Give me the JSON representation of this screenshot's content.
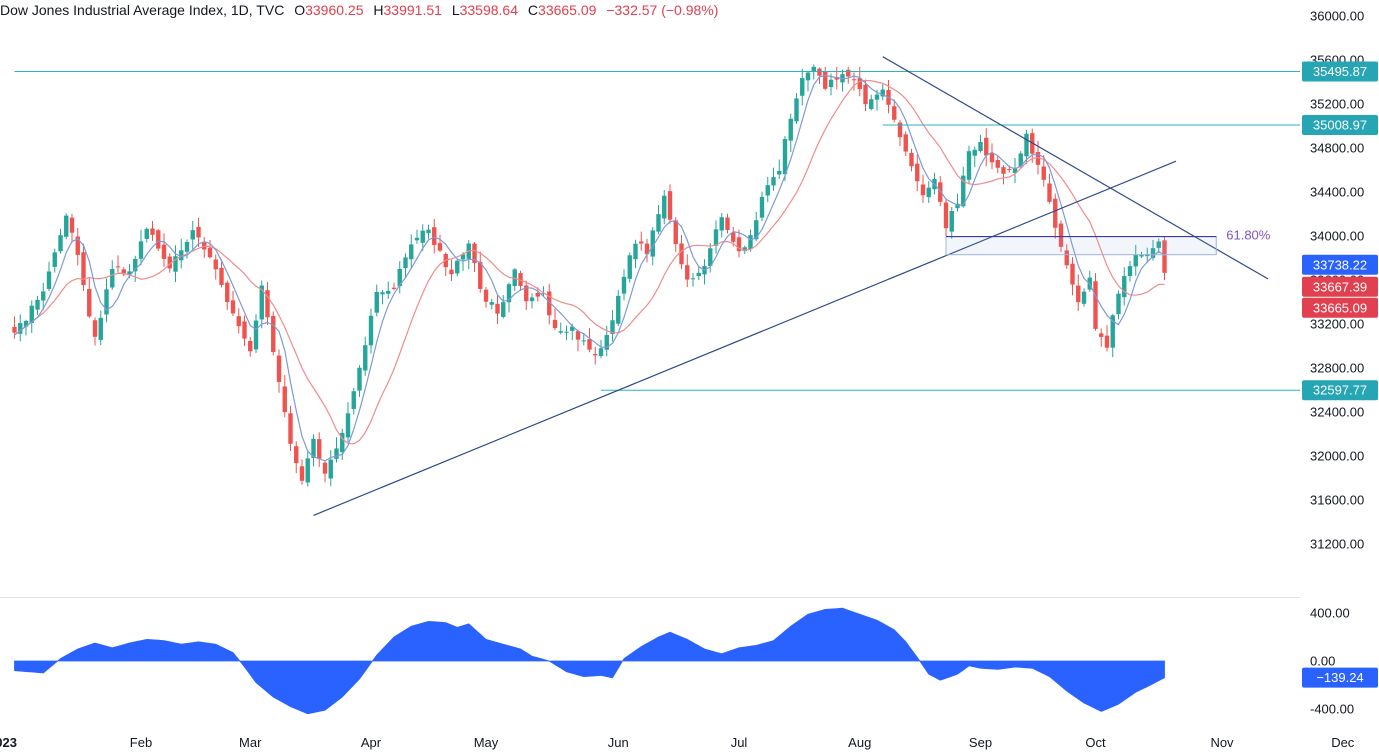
{
  "header": {
    "symbol": "Dow Jones Industrial Average Index, 1D, TVC",
    "o_label": "O",
    "o_value": "33960.25",
    "h_label": "H",
    "h_value": "33991.51",
    "l_label": "L",
    "l_value": "33598.64",
    "c_label": "C",
    "c_value": "33665.09",
    "change": "−332.57 (−0.98%)"
  },
  "colors": {
    "up": "#26a69a",
    "down": "#ef5350",
    "fast_ma": "#7e9ad8",
    "slow_ma": "#f08c8c",
    "trendline": "#2f4a8a",
    "level": "#2bb3c0",
    "oscillator": "#2962ff",
    "fib": "#7e57c2"
  },
  "chart_data": [
    {
      "type": "candlestick",
      "title": "Dow Jones Industrial Average Index, 1D, TVC",
      "ylim": [
        31000,
        36100
      ],
      "y_ticks": [
        "36000.00",
        "35600.00",
        "35200.00",
        "34800.00",
        "34400.00",
        "34000.00",
        "33600.00",
        "33200.00",
        "32800.00",
        "32400.00",
        "32000.00",
        "31600.00",
        "31200.00"
      ],
      "x_ticks": [
        "2023",
        "Feb",
        "Mar",
        "Apr",
        "May",
        "Jun",
        "Jul",
        "Aug",
        "Sep",
        "Oct",
        "Nov",
        "Dec"
      ],
      "x_tick_days": [
        -5,
        17,
        36,
        57,
        77,
        100,
        121,
        142,
        163,
        183,
        205,
        226
      ],
      "last_day": 195,
      "anchors": [
        [
          -5,
          33100
        ],
        [
          0,
          33500
        ],
        [
          4,
          34200
        ],
        [
          6,
          33800
        ],
        [
          9,
          33050
        ],
        [
          12,
          33700
        ],
        [
          15,
          33650
        ],
        [
          18,
          34100
        ],
        [
          22,
          33700
        ],
        [
          26,
          34050
        ],
        [
          29,
          33800
        ],
        [
          33,
          33300
        ],
        [
          36,
          32950
        ],
        [
          38,
          33550
        ],
        [
          40,
          32950
        ],
        [
          43,
          32100
        ],
        [
          45,
          31800
        ],
        [
          47,
          32150
        ],
        [
          49,
          31850
        ],
        [
          51,
          32050
        ],
        [
          53,
          32400
        ],
        [
          55,
          32800
        ],
        [
          58,
          33500
        ],
        [
          61,
          33550
        ],
        [
          64,
          33950
        ],
        [
          67,
          34050
        ],
        [
          69,
          33850
        ],
        [
          71,
          33650
        ],
        [
          74,
          33950
        ],
        [
          76,
          33500
        ],
        [
          79,
          33300
        ],
        [
          82,
          33700
        ],
        [
          84,
          33400
        ],
        [
          87,
          33450
        ],
        [
          89,
          33150
        ],
        [
          92,
          33150
        ],
        [
          95,
          32950
        ],
        [
          97,
          32950
        ],
        [
          99,
          33200
        ],
        [
          101,
          33650
        ],
        [
          103,
          33950
        ],
        [
          105,
          33850
        ],
        [
          108,
          34400
        ],
        [
          110,
          33900
        ],
        [
          112,
          33600
        ],
        [
          115,
          33750
        ],
        [
          118,
          34200
        ],
        [
          121,
          33850
        ],
        [
          123,
          34000
        ],
        [
          125,
          34350
        ],
        [
          128,
          34600
        ],
        [
          130,
          35100
        ],
        [
          132,
          35450
        ],
        [
          134,
          35550
        ],
        [
          136,
          35350
        ],
        [
          139,
          35500
        ],
        [
          141,
          35450
        ],
        [
          143,
          35200
        ],
        [
          146,
          35350
        ],
        [
          148,
          35050
        ],
        [
          151,
          34600
        ],
        [
          153,
          34350
        ],
        [
          155,
          34500
        ],
        [
          157,
          34100
        ],
        [
          159,
          34300
        ],
        [
          161,
          34750
        ],
        [
          163,
          34850
        ],
        [
          165,
          34650
        ],
        [
          167,
          34550
        ],
        [
          169,
          34650
        ],
        [
          171,
          34900
        ],
        [
          174,
          34500
        ],
        [
          176,
          34100
        ],
        [
          178,
          33700
        ],
        [
          180,
          33400
        ],
        [
          182,
          33650
        ],
        [
          183,
          33150
        ],
        [
          185,
          33000
        ],
        [
          187,
          33500
        ],
        [
          190,
          33850
        ],
        [
          192,
          33800
        ],
        [
          194,
          33950
        ],
        [
          195,
          33665
        ]
      ],
      "levels": [
        {
          "label": "35495.87",
          "value": 35495.87,
          "from_day": -5
        },
        {
          "label": "35008.97",
          "value": 35008.97,
          "from_day": 146
        },
        {
          "label": "32597.77",
          "value": 32597.77,
          "from_day": 97
        }
      ],
      "price_badges": [
        {
          "label": "33738.22",
          "value": 33738.22,
          "color": "#2962ff"
        },
        {
          "label": "33667.39",
          "value": 33667.39,
          "color": "#e0404f"
        },
        {
          "label": "33665.09",
          "value": 33665.09,
          "color": "#e0404f"
        }
      ],
      "trendlines": [
        {
          "from": [
            47,
            31460
          ],
          "to": [
            197,
            34680
          ]
        },
        {
          "from": [
            146,
            35630
          ],
          "to": [
            213,
            33610
          ]
        }
      ],
      "fib": {
        "label": "61.80%",
        "top": 33995,
        "bottom": 33830,
        "from_day": 157,
        "to_day": 204
      }
    },
    {
      "type": "area",
      "title": "Oscillator",
      "ylim": [
        -470,
        470
      ],
      "y_ticks": [
        "400.00",
        "0.00",
        "-400.00"
      ],
      "last_value_label": "−139.24",
      "anchors": [
        [
          -5,
          -80
        ],
        [
          0,
          -100
        ],
        [
          3,
          20
        ],
        [
          6,
          100
        ],
        [
          9,
          150
        ],
        [
          12,
          110
        ],
        [
          15,
          150
        ],
        [
          18,
          180
        ],
        [
          21,
          170
        ],
        [
          24,
          140
        ],
        [
          27,
          160
        ],
        [
          30,
          140
        ],
        [
          33,
          70
        ],
        [
          35,
          -50
        ],
        [
          37,
          -180
        ],
        [
          40,
          -300
        ],
        [
          43,
          -380
        ],
        [
          46,
          -440
        ],
        [
          49,
          -410
        ],
        [
          52,
          -300
        ],
        [
          55,
          -150
        ],
        [
          58,
          50
        ],
        [
          61,
          200
        ],
        [
          64,
          290
        ],
        [
          67,
          330
        ],
        [
          70,
          320
        ],
        [
          72,
          280
        ],
        [
          74,
          310
        ],
        [
          77,
          180
        ],
        [
          80,
          140
        ],
        [
          83,
          100
        ],
        [
          85,
          40
        ],
        [
          88,
          0
        ],
        [
          91,
          -90
        ],
        [
          94,
          -130
        ],
        [
          97,
          -120
        ],
        [
          99,
          -140
        ],
        [
          101,
          20
        ],
        [
          104,
          120
        ],
        [
          107,
          200
        ],
        [
          109,
          240
        ],
        [
          112,
          180
        ],
        [
          115,
          100
        ],
        [
          118,
          60
        ],
        [
          121,
          110
        ],
        [
          124,
          130
        ],
        [
          127,
          170
        ],
        [
          130,
          290
        ],
        [
          133,
          390
        ],
        [
          136,
          430
        ],
        [
          139,
          440
        ],
        [
          142,
          390
        ],
        [
          145,
          340
        ],
        [
          148,
          260
        ],
        [
          150,
          160
        ],
        [
          152,
          30
        ],
        [
          154,
          -110
        ],
        [
          156,
          -160
        ],
        [
          159,
          -110
        ],
        [
          161,
          -40
        ],
        [
          163,
          -60
        ],
        [
          166,
          -70
        ],
        [
          169,
          -50
        ],
        [
          172,
          -60
        ],
        [
          175,
          -130
        ],
        [
          178,
          -250
        ],
        [
          181,
          -350
        ],
        [
          184,
          -420
        ],
        [
          187,
          -360
        ],
        [
          190,
          -260
        ],
        [
          193,
          -190
        ],
        [
          195,
          -139
        ]
      ]
    }
  ]
}
